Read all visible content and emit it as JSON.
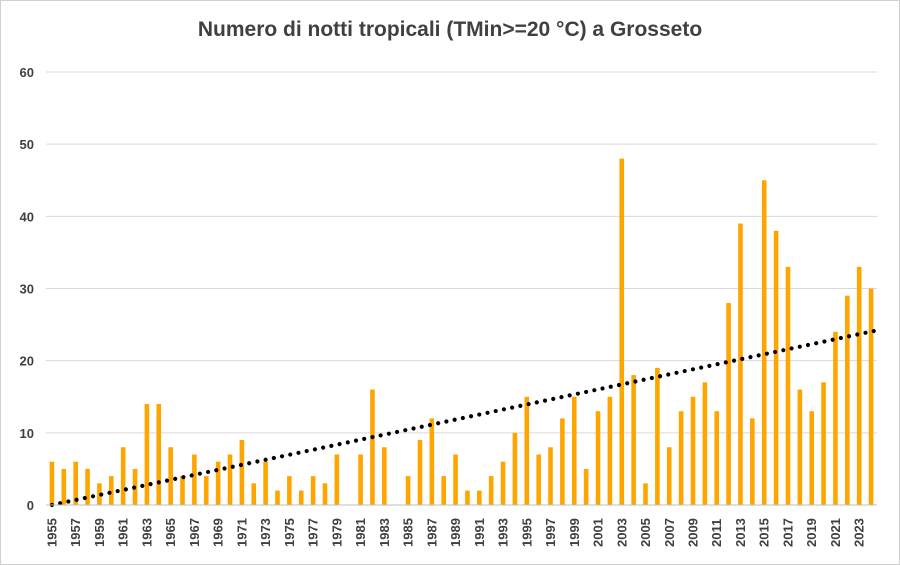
{
  "chart_data": {
    "type": "bar",
    "title": "Numero di notti tropicali (TMin>=20 °C) a Grosseto",
    "xlabel": "",
    "ylabel": "",
    "ylim": [
      0,
      60
    ],
    "yticks": [
      0,
      10,
      20,
      30,
      40,
      50,
      60
    ],
    "grid": true,
    "legend": "none",
    "bar_color": "#FFA500",
    "trend_color": "#000000",
    "trend_style": "dotted",
    "trendline": {
      "start": 0,
      "end": 24.2
    },
    "categories": [
      "1955",
      "1956",
      "1957",
      "1958",
      "1959",
      "1960",
      "1961",
      "1962",
      "1963",
      "1964",
      "1965",
      "1966",
      "1967",
      "1968",
      "1969",
      "1970",
      "1971",
      "1972",
      "1973",
      "1974",
      "1975",
      "1976",
      "1977",
      "1978",
      "1979",
      "1980",
      "1981",
      "1982",
      "1983",
      "1984",
      "1985",
      "1986",
      "1987",
      "1988",
      "1989",
      "1990",
      "1991",
      "1992",
      "1993",
      "1994",
      "1995",
      "1996",
      "1997",
      "1998",
      "1999",
      "2000",
      "2001",
      "2002",
      "2003",
      "2004",
      "2005",
      "2006",
      "2007",
      "2008",
      "2009",
      "2010",
      "2011",
      "2012",
      "2013",
      "2014",
      "2015",
      "2016",
      "2017",
      "2018",
      "2019",
      "2020",
      "2021",
      "2022",
      "2023",
      "2024"
    ],
    "tick_labels": [
      "1955",
      "1957",
      "1959",
      "1961",
      "1963",
      "1965",
      "1967",
      "1969",
      "1971",
      "1973",
      "1975",
      "1977",
      "1979",
      "1981",
      "1983",
      "1985",
      "1987",
      "1989",
      "1991",
      "1993",
      "1995",
      "1997",
      "1999",
      "2001",
      "2003",
      "2005",
      "2007",
      "2009",
      "2011",
      "2013",
      "2015",
      "2017",
      "2019",
      "2021",
      "2023"
    ],
    "values": [
      6,
      5,
      6,
      5,
      3,
      4,
      8,
      5,
      14,
      14,
      8,
      4,
      7,
      4,
      6,
      7,
      9,
      3,
      6,
      2,
      4,
      2,
      4,
      3,
      7,
      0,
      7,
      16,
      8,
      0,
      4,
      9,
      12,
      4,
      7,
      2,
      2,
      4,
      6,
      10,
      15,
      7,
      8,
      12,
      15,
      5,
      13,
      15,
      48,
      18,
      3,
      19,
      8,
      13,
      15,
      17,
      13,
      28,
      39,
      12,
      45,
      38,
      33,
      16,
      13,
      17,
      24,
      29,
      33,
      30
    ]
  }
}
